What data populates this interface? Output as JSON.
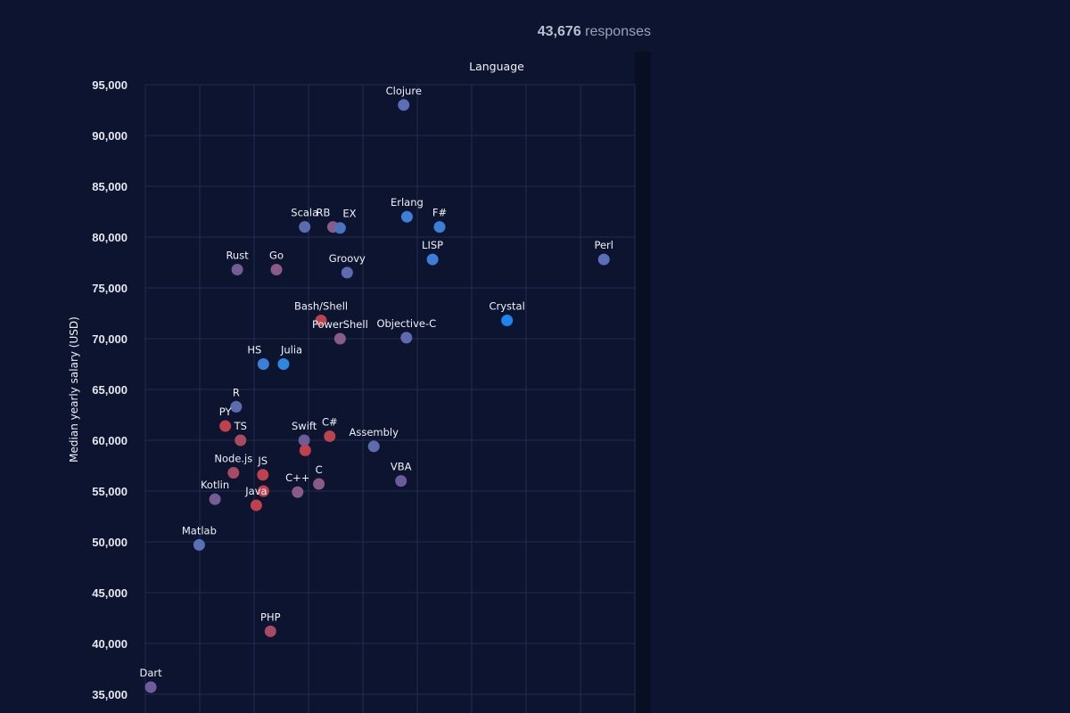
{
  "header": {
    "response_count": "43,676",
    "response_label": "responses"
  },
  "chart_data": {
    "type": "scatter",
    "title": "",
    "legend_title": "Language",
    "xlabel": "",
    "ylabel": "Median yearly salary (USD)",
    "xlim": [
      0,
      9
    ],
    "ylim": [
      35000,
      95000
    ],
    "grid": true,
    "yticks": [
      35000,
      40000,
      45000,
      50000,
      55000,
      60000,
      65000,
      70000,
      75000,
      80000,
      85000,
      90000,
      95000
    ],
    "ytick_labels": [
      "35,000",
      "40,000",
      "45,000",
      "50,000",
      "55,000",
      "60,000",
      "65,000",
      "70,000",
      "75,000",
      "80,000",
      "85,000",
      "90,000",
      "95,000"
    ],
    "colors": {
      "slate": "#5d6cb0",
      "mauve": "#8a5b86",
      "red": "#c0404e",
      "blue": "#3b7fd6",
      "bright": "#1d84f0",
      "purple": "#6c5c9a"
    },
    "points": [
      {
        "name": "Clojure",
        "x": 4.75,
        "y": 93000,
        "color": "#5b6fb8"
      },
      {
        "name": "Scala",
        "x": 2.93,
        "y": 81000,
        "color": "#5b6bb0"
      },
      {
        "name": "RB",
        "x": 3.45,
        "y": 81000,
        "color": "#8a5b86"
      },
      {
        "name": "EX",
        "x": 3.58,
        "y": 80900,
        "color": "#4d72c0"
      },
      {
        "name": "Erlang",
        "x": 4.81,
        "y": 82000,
        "color": "#3b7fd6"
      },
      {
        "name": "F#",
        "x": 5.41,
        "y": 81000,
        "color": "#3b7fd6"
      },
      {
        "name": "Perl",
        "x": 8.43,
        "y": 77800,
        "color": "#5b6fb8"
      },
      {
        "name": "Rust",
        "x": 1.69,
        "y": 76800,
        "color": "#745d93"
      },
      {
        "name": "Go",
        "x": 2.41,
        "y": 76800,
        "color": "#8a5b86"
      },
      {
        "name": "Groovy",
        "x": 3.71,
        "y": 76500,
        "color": "#5d6cb0"
      },
      {
        "name": "LISP",
        "x": 5.28,
        "y": 77800,
        "color": "#3b7fd6"
      },
      {
        "name": "Bash/Shell",
        "x": 3.23,
        "y": 71800,
        "color": "#b8444f"
      },
      {
        "name": "PowerShell",
        "x": 3.58,
        "y": 70000,
        "color": "#8a5b86"
      },
      {
        "name": "Objective-C",
        "x": 4.8,
        "y": 70100,
        "color": "#5d6cb0"
      },
      {
        "name": "Crystal",
        "x": 6.65,
        "y": 71800,
        "color": "#1d84f0"
      },
      {
        "name": "HS",
        "x": 2.17,
        "y": 67500,
        "color": "#3b7fd6"
      },
      {
        "name": "Julia",
        "x": 2.54,
        "y": 67500,
        "color": "#2f88e0"
      },
      {
        "name": "R",
        "x": 1.67,
        "y": 63300,
        "color": "#5d6cb0"
      },
      {
        "name": "PY",
        "x": 1.47,
        "y": 61400,
        "color": "#c0404e"
      },
      {
        "name": "TS",
        "x": 1.75,
        "y": 60000,
        "color": "#a84a63"
      },
      {
        "name": "Swift",
        "x": 2.92,
        "y": 60000,
        "color": "#6c5c9a"
      },
      {
        "name": "",
        "x": 2.94,
        "y": 59000,
        "color": "#c0404e"
      },
      {
        "name": "C#",
        "x": 3.39,
        "y": 60400,
        "color": "#b8444f"
      },
      {
        "name": "Assembly",
        "x": 4.2,
        "y": 59400,
        "color": "#5d6cb0"
      },
      {
        "name": "Node.js",
        "x": 1.62,
        "y": 56800,
        "color": "#a84a63"
      },
      {
        "name": "JS",
        "x": 2.16,
        "y": 56600,
        "color": "#c0404e"
      },
      {
        "name": "C",
        "x": 3.19,
        "y": 55700,
        "color": "#8a5b86"
      },
      {
        "name": "VBA",
        "x": 4.7,
        "y": 56000,
        "color": "#6c5c9a"
      },
      {
        "name": "C++",
        "x": 2.8,
        "y": 54900,
        "color": "#8a5b86"
      },
      {
        "name": "Kotlin",
        "x": 1.28,
        "y": 54200,
        "color": "#745d93"
      },
      {
        "name": "",
        "x": 2.17,
        "y": 55000,
        "color": "#c0404e"
      },
      {
        "name": "Java",
        "x": 2.04,
        "y": 53600,
        "color": "#c0404e"
      },
      {
        "name": "Matlab",
        "x": 0.99,
        "y": 49700,
        "color": "#5b6fb8"
      },
      {
        "name": "PHP",
        "x": 2.3,
        "y": 41200,
        "color": "#a84a63"
      },
      {
        "name": "Dart",
        "x": 0.1,
        "y": 35700,
        "color": "#6c5c9a"
      }
    ]
  }
}
